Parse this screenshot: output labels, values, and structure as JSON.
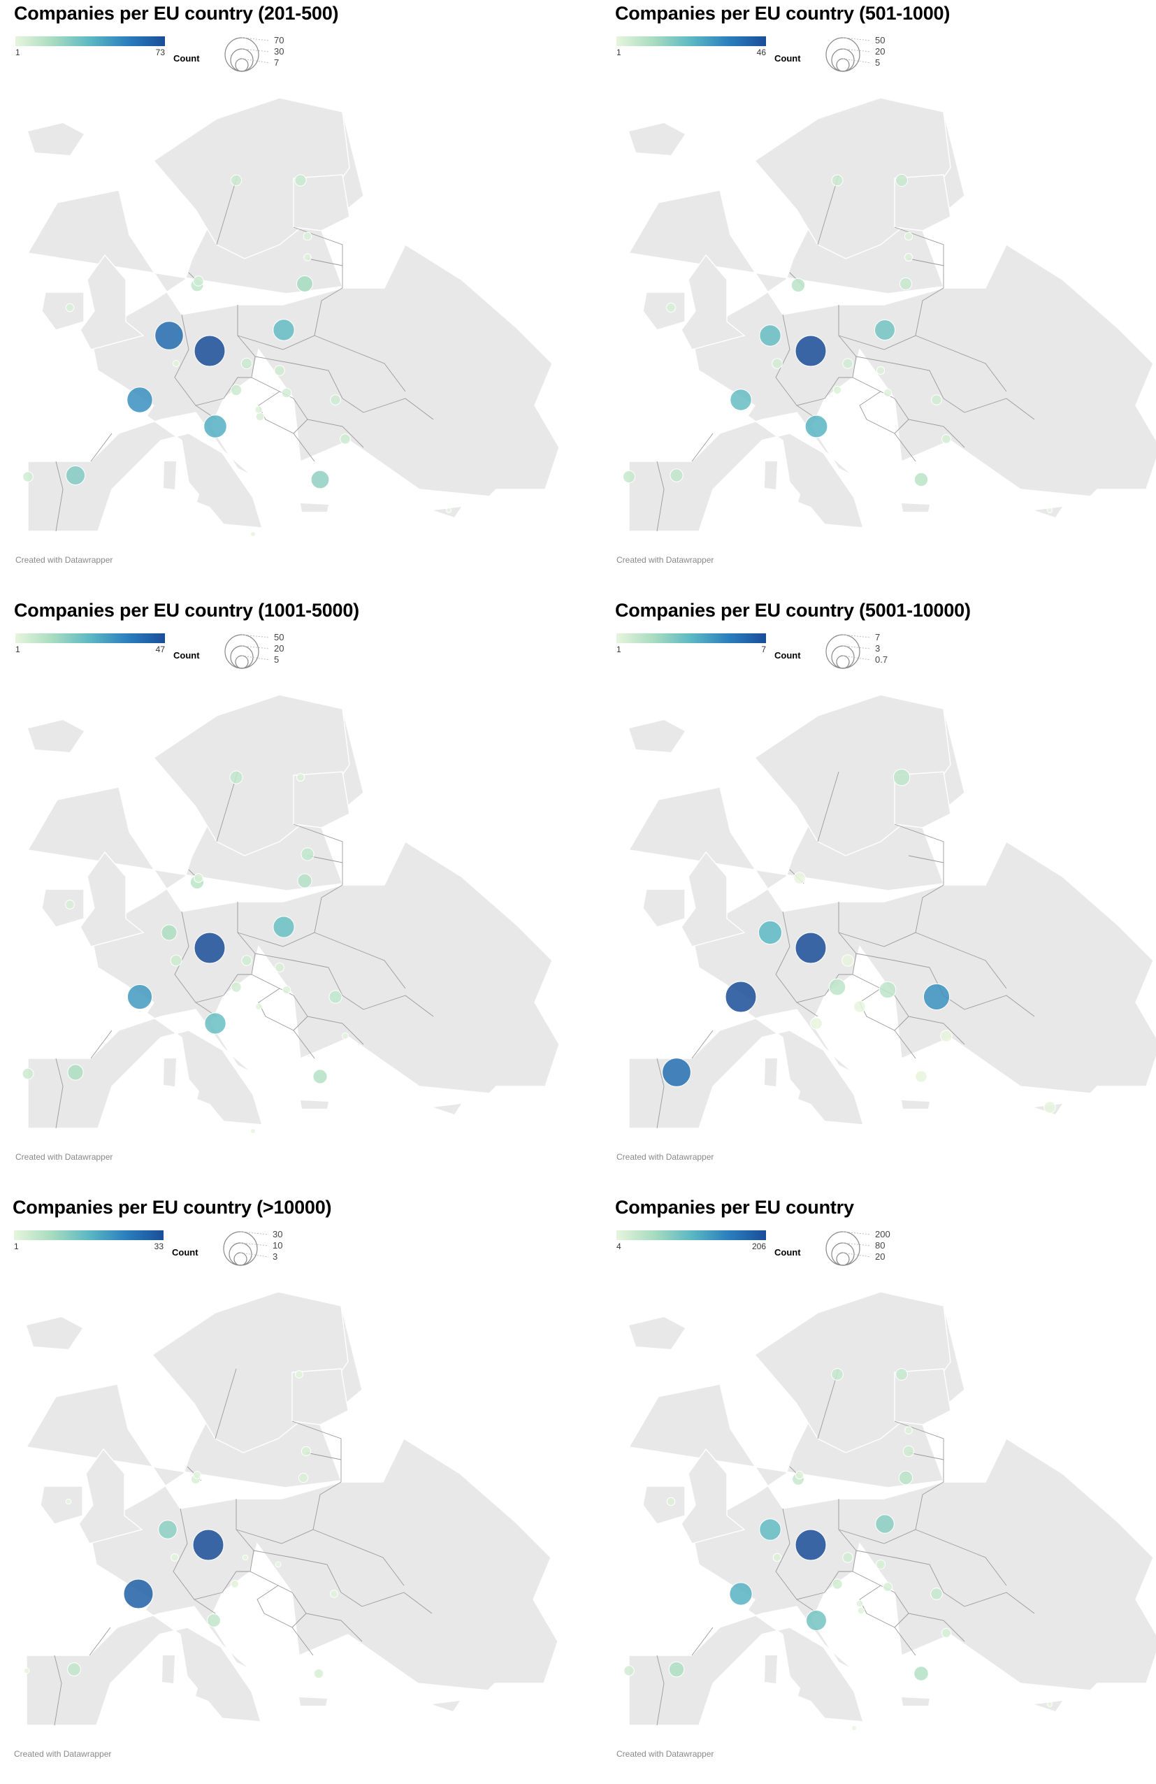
{
  "credit": "Created with Datawrapper",
  "count_label": "Count",
  "colors": {
    "land": "#e8e8e8",
    "scale": [
      "#e6f5dc",
      "#a8dcc0",
      "#5cb8c4",
      "#2b7fbd",
      "#1a4e98"
    ]
  },
  "panels": [
    {
      "title": "Companies per EU country (201-500)",
      "color_min": "1",
      "color_max": "73",
      "size_legend": [
        "70",
        "30",
        "7"
      ],
      "size_values": [
        70,
        30,
        7
      ],
      "chart_data": {
        "type": "proportional-symbol-map",
        "points": [
          {
            "country": "Germany",
            "value": 73
          },
          {
            "country": "Belgium",
            "value": 62
          },
          {
            "country": "France",
            "value": 50
          },
          {
            "country": "Italy",
            "value": 40
          },
          {
            "country": "Poland",
            "value": 35
          },
          {
            "country": "Spain",
            "value": 28
          },
          {
            "country": "Greece",
            "value": 25
          },
          {
            "country": "Lithuania",
            "value": 20
          },
          {
            "country": "Netherlands",
            "value": 12
          },
          {
            "country": "Finland",
            "value": 10
          },
          {
            "country": "Sweden",
            "value": 9
          },
          {
            "country": "Czechia",
            "value": 9
          },
          {
            "country": "Austria",
            "value": 9
          },
          {
            "country": "Slovakia",
            "value": 8
          },
          {
            "country": "Romania",
            "value": 8
          },
          {
            "country": "Bulgaria",
            "value": 8
          },
          {
            "country": "Denmark",
            "value": 8
          },
          {
            "country": "Portugal",
            "value": 8
          },
          {
            "country": "Hungary",
            "value": 7
          },
          {
            "country": "Ireland",
            "value": 5
          },
          {
            "country": "Estonia",
            "value": 5
          },
          {
            "country": "Latvia",
            "value": 4
          },
          {
            "country": "Slovenia",
            "value": 4
          },
          {
            "country": "Croatia",
            "value": 5
          },
          {
            "country": "Luxembourg",
            "value": 3
          },
          {
            "country": "Malta",
            "value": 1
          },
          {
            "country": "Cyprus",
            "value": 1
          }
        ]
      }
    },
    {
      "title": "Companies per EU country (501-1000)",
      "color_min": "1",
      "color_max": "46",
      "size_legend": [
        "50",
        "20",
        "5"
      ],
      "size_values": [
        50,
        20,
        5
      ],
      "chart_data": {
        "type": "proportional-symbol-map",
        "points": [
          {
            "country": "Germany",
            "value": 46
          },
          {
            "country": "Belgium",
            "value": 22
          },
          {
            "country": "France",
            "value": 22
          },
          {
            "country": "Italy",
            "value": 24
          },
          {
            "country": "Poland",
            "value": 20
          },
          {
            "country": "Netherlands",
            "value": 9
          },
          {
            "country": "Spain",
            "value": 8
          },
          {
            "country": "Greece",
            "value": 9
          },
          {
            "country": "Lithuania",
            "value": 7
          },
          {
            "country": "Finland",
            "value": 7
          },
          {
            "country": "Sweden",
            "value": 6
          },
          {
            "country": "Portugal",
            "value": 7
          },
          {
            "country": "Czechia",
            "value": 5
          },
          {
            "country": "Luxembourg",
            "value": 5
          },
          {
            "country": "Romania",
            "value": 5
          },
          {
            "country": "Slovakia",
            "value": 3
          },
          {
            "country": "Austria",
            "value": 3
          },
          {
            "country": "Hungary",
            "value": 3
          },
          {
            "country": "Bulgaria",
            "value": 4
          },
          {
            "country": "Ireland",
            "value": 4
          },
          {
            "country": "Estonia",
            "value": 3
          },
          {
            "country": "Latvia",
            "value": 3
          },
          {
            "country": "Cyprus",
            "value": 1
          }
        ]
      }
    },
    {
      "title": "Companies per EU country (1001-5000)",
      "color_min": "1",
      "color_max": "47",
      "size_legend": [
        "50",
        "20",
        "5"
      ],
      "size_values": [
        50,
        20,
        5
      ],
      "chart_data": {
        "type": "proportional-symbol-map",
        "points": [
          {
            "country": "Germany",
            "value": 47
          },
          {
            "country": "France",
            "value": 30
          },
          {
            "country": "Poland",
            "value": 22
          },
          {
            "country": "Italy",
            "value": 22
          },
          {
            "country": "Belgium",
            "value": 12
          },
          {
            "country": "Netherlands",
            "value": 9
          },
          {
            "country": "Spain",
            "value": 12
          },
          {
            "country": "Lithuania",
            "value": 10
          },
          {
            "country": "Greece",
            "value": 10
          },
          {
            "country": "Latvia",
            "value": 8
          },
          {
            "country": "Sweden",
            "value": 8
          },
          {
            "country": "Romania",
            "value": 8
          },
          {
            "country": "Luxembourg",
            "value": 6
          },
          {
            "country": "Portugal",
            "value": 6
          },
          {
            "country": "Czechia",
            "value": 5
          },
          {
            "country": "Austria",
            "value": 5
          },
          {
            "country": "Slovakia",
            "value": 4
          },
          {
            "country": "Ireland",
            "value": 4
          },
          {
            "country": "Denmark",
            "value": 4
          },
          {
            "country": "Finland",
            "value": 3
          },
          {
            "country": "Hungary",
            "value": 3
          },
          {
            "country": "Slovenia",
            "value": 2
          },
          {
            "country": "Bulgaria",
            "value": 2
          },
          {
            "country": "Malta",
            "value": 1
          }
        ]
      }
    },
    {
      "title": "Companies per EU country (5001-10000)",
      "color_min": "1",
      "color_max": "7",
      "size_legend": [
        "7",
        "3",
        "0.7"
      ],
      "size_values": [
        7,
        3,
        0.7
      ],
      "chart_data": {
        "type": "proportional-symbol-map",
        "points": [
          {
            "country": "Germany",
            "value": 7
          },
          {
            "country": "France",
            "value": 7
          },
          {
            "country": "Spain",
            "value": 6
          },
          {
            "country": "Romania",
            "value": 5
          },
          {
            "country": "Belgium",
            "value": 4
          },
          {
            "country": "Finland",
            "value": 2
          },
          {
            "country": "Austria",
            "value": 2
          },
          {
            "country": "Hungary",
            "value": 2
          },
          {
            "country": "Czechia",
            "value": 1
          },
          {
            "country": "Italy",
            "value": 1
          },
          {
            "country": "Bulgaria",
            "value": 1
          },
          {
            "country": "Slovenia",
            "value": 1
          },
          {
            "country": "Greece",
            "value": 1
          },
          {
            "country": "Denmark",
            "value": 1
          },
          {
            "country": "Cyprus",
            "value": 1
          }
        ]
      }
    },
    {
      "title": "Companies per EU country (>10000)",
      "color_min": "1",
      "color_max": "33",
      "size_legend": [
        "30",
        "10",
        "3"
      ],
      "size_values": [
        30,
        10,
        3
      ],
      "chart_data": {
        "type": "proportional-symbol-map",
        "points": [
          {
            "country": "Germany",
            "value": 33
          },
          {
            "country": "France",
            "value": 30
          },
          {
            "country": "Belgium",
            "value": 12
          },
          {
            "country": "Italy",
            "value": 6
          },
          {
            "country": "Spain",
            "value": 6
          },
          {
            "country": "Latvia",
            "value": 3
          },
          {
            "country": "Lithuania",
            "value": 3
          },
          {
            "country": "Finland",
            "value": 2
          },
          {
            "country": "Denmark",
            "value": 2
          },
          {
            "country": "Netherlands",
            "value": 3
          },
          {
            "country": "Greece",
            "value": 3
          },
          {
            "country": "Romania",
            "value": 2
          },
          {
            "country": "Austria",
            "value": 2
          },
          {
            "country": "Czechia",
            "value": 1
          },
          {
            "country": "Slovakia",
            "value": 1
          },
          {
            "country": "Ireland",
            "value": 1
          },
          {
            "country": "Luxembourg",
            "value": 2
          },
          {
            "country": "Portugal",
            "value": 1
          }
        ]
      }
    },
    {
      "title": "Companies per EU country",
      "color_min": "4",
      "color_max": "206",
      "size_legend": [
        "200",
        "80",
        "20"
      ],
      "size_values": [
        200,
        80,
        20
      ],
      "chart_data": {
        "type": "proportional-symbol-map",
        "points": [
          {
            "country": "Germany",
            "value": 206
          },
          {
            "country": "France",
            "value": 110
          },
          {
            "country": "Belgium",
            "value": 100
          },
          {
            "country": "Italy",
            "value": 90
          },
          {
            "country": "Poland",
            "value": 75
          },
          {
            "country": "Spain",
            "value": 50
          },
          {
            "country": "Greece",
            "value": 45
          },
          {
            "country": "Lithuania",
            "value": 40
          },
          {
            "country": "Netherlands",
            "value": 30
          },
          {
            "country": "Finland",
            "value": 30
          },
          {
            "country": "Sweden",
            "value": 30
          },
          {
            "country": "Romania",
            "value": 30
          },
          {
            "country": "Latvia",
            "value": 25
          },
          {
            "country": "Austria",
            "value": 22
          },
          {
            "country": "Czechia",
            "value": 22
          },
          {
            "country": "Portugal",
            "value": 22
          },
          {
            "country": "Slovakia",
            "value": 18
          },
          {
            "country": "Hungary",
            "value": 18
          },
          {
            "country": "Bulgaria",
            "value": 18
          },
          {
            "country": "Ireland",
            "value": 14
          },
          {
            "country": "Denmark",
            "value": 14
          },
          {
            "country": "Luxembourg",
            "value": 14
          },
          {
            "country": "Estonia",
            "value": 12
          },
          {
            "country": "Slovenia",
            "value": 10
          },
          {
            "country": "Croatia",
            "value": 10
          },
          {
            "country": "Malta",
            "value": 4
          },
          {
            "country": "Cyprus",
            "value": 5
          }
        ]
      }
    }
  ]
}
